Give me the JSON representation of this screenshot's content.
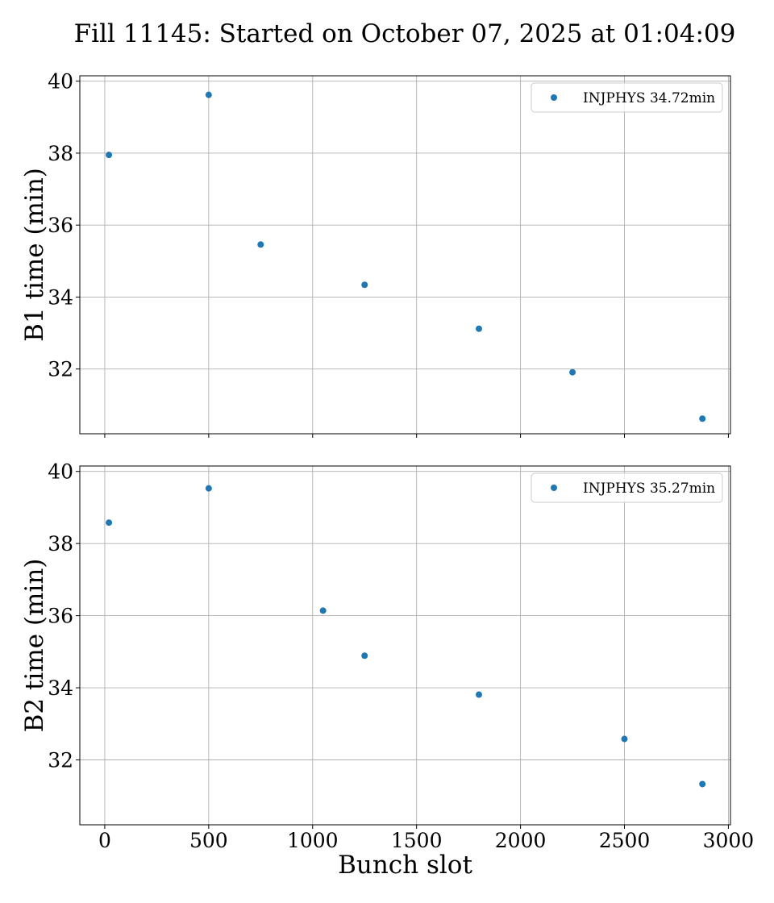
{
  "title": "Fill 11145: Started on October 07, 2025 at 01:04:09",
  "chart_data": [
    {
      "type": "scatter",
      "xlabel": "",
      "ylabel": "B1 time (min)",
      "xlim": [
        -120,
        3010
      ],
      "ylim": [
        30.2,
        40.15
      ],
      "xticks": [
        0,
        500,
        1000,
        1500,
        2000,
        2500,
        3000
      ],
      "yticks": [
        32,
        34,
        36,
        38,
        40
      ],
      "show_x_tick_labels": false,
      "grid": true,
      "legend_position": "top-right",
      "series": [
        {
          "name": "INJPHYS 34.72min",
          "color": "#1f77b4",
          "x": [
            20,
            500,
            750,
            1250,
            1800,
            2250,
            2875
          ],
          "y": [
            37.95,
            39.62,
            35.46,
            34.34,
            33.12,
            31.91,
            30.62
          ]
        }
      ]
    },
    {
      "type": "scatter",
      "xlabel": "Bunch slot",
      "ylabel": "B2 time (min)",
      "xlim": [
        -120,
        3010
      ],
      "ylim": [
        30.2,
        40.15
      ],
      "xticks": [
        0,
        500,
        1000,
        1500,
        2000,
        2500,
        3000
      ],
      "yticks": [
        32,
        34,
        36,
        38,
        40
      ],
      "show_x_tick_labels": true,
      "grid": true,
      "legend_position": "top-right",
      "series": [
        {
          "name": "INJPHYS 35.27min",
          "color": "#1f77b4",
          "x": [
            20,
            500,
            1050,
            1250,
            1800,
            2500,
            2875
          ],
          "y": [
            38.58,
            39.53,
            36.14,
            34.89,
            33.81,
            32.58,
            31.33
          ]
        }
      ]
    }
  ]
}
